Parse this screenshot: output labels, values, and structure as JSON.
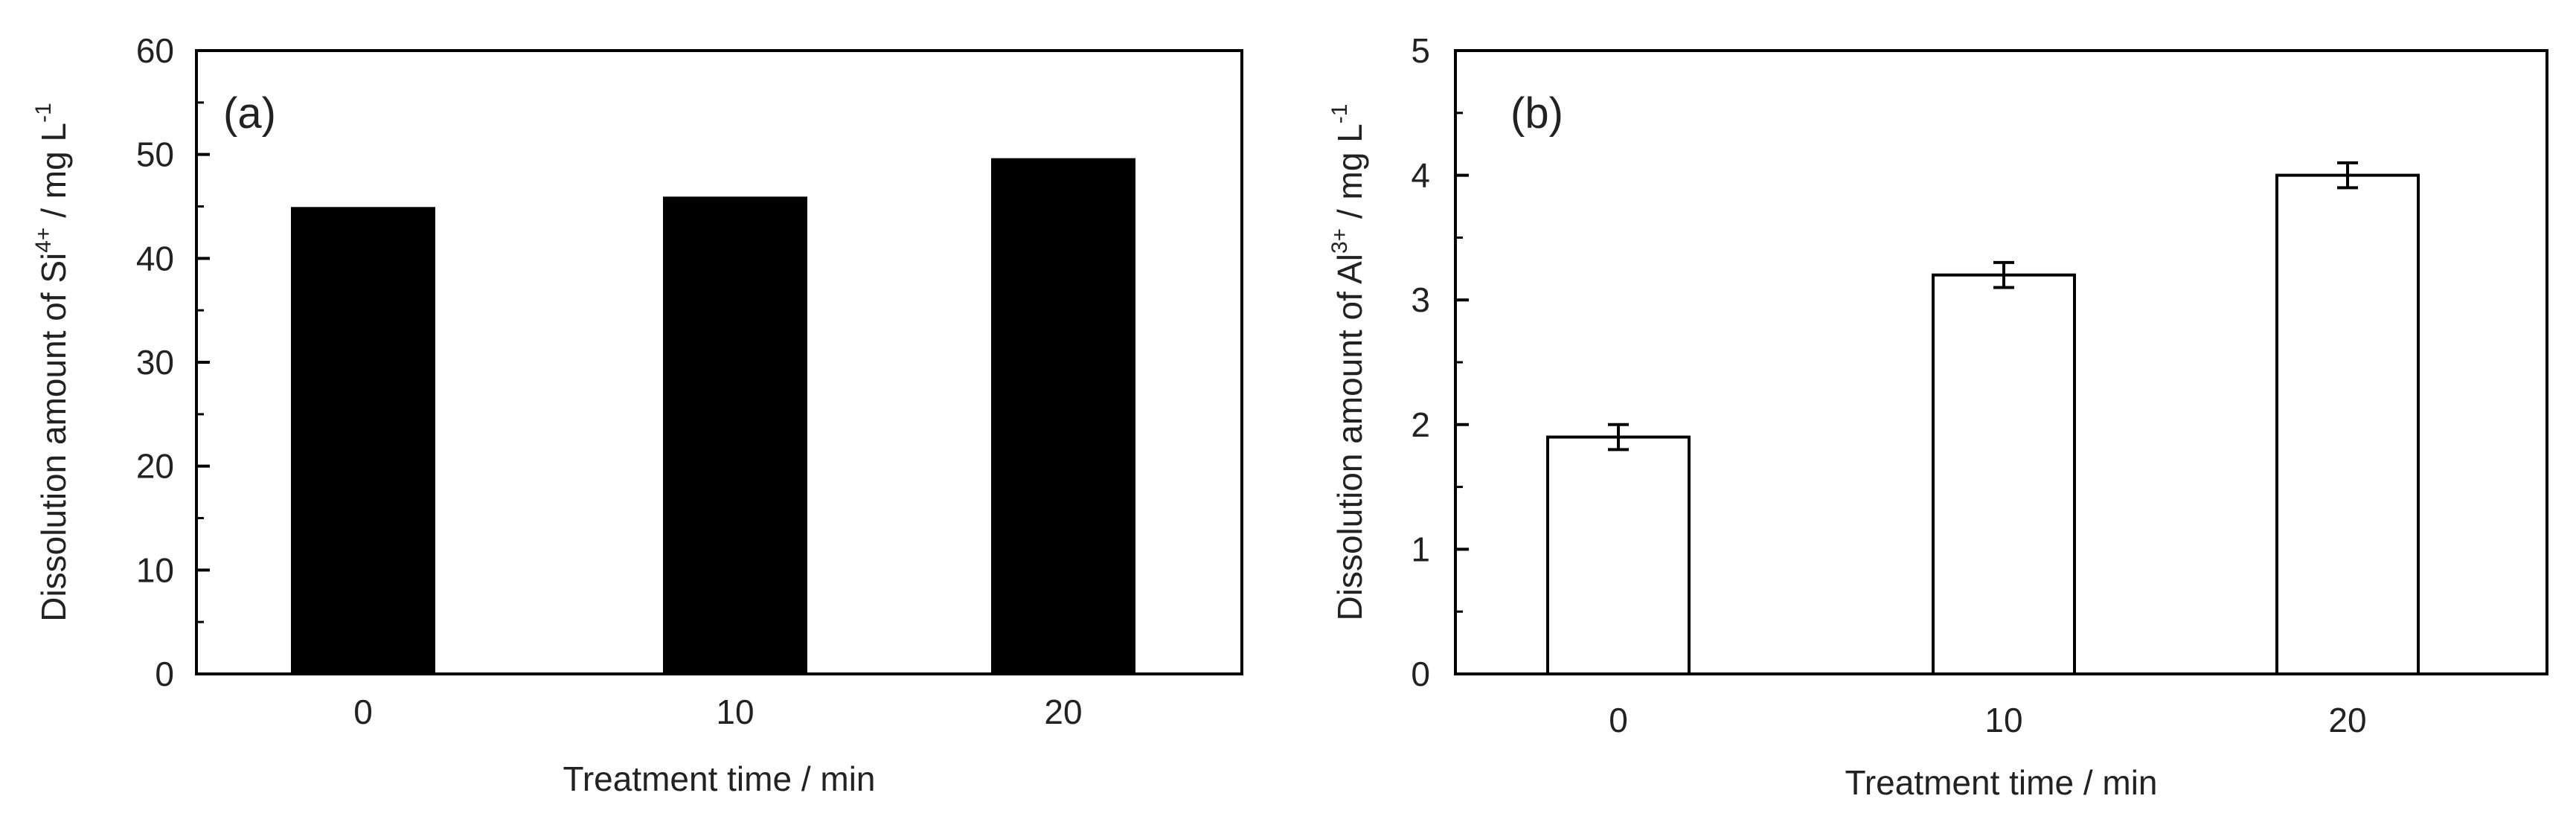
{
  "chart_data": [
    {
      "type": "bar",
      "panel_label": "(a)",
      "categories": [
        "0",
        "10",
        "20"
      ],
      "values": [
        44.8,
        45.8,
        49.5
      ],
      "ylim": [
        0,
        60
      ],
      "y_ticks": [
        "0",
        "10",
        "20",
        "30",
        "40",
        "50",
        "60"
      ],
      "xlabel": "Treatment time / min",
      "ylabel": {
        "text1": "Dissolution amount of Si",
        "sup1": "4+",
        "text2": " / mg L",
        "sup2": "-1"
      },
      "bar_fill": "#000000",
      "bar_stroke": "#000000",
      "grid": false,
      "minor_y_ticks": true
    },
    {
      "type": "bar",
      "panel_label": "(b)",
      "categories": [
        "0",
        "10",
        "20"
      ],
      "values": [
        1.9,
        3.2,
        4.0
      ],
      "errors": [
        0.1,
        0.1,
        0.1
      ],
      "ylim": [
        0,
        5
      ],
      "y_ticks": [
        "0",
        "1",
        "2",
        "3",
        "4",
        "5"
      ],
      "xlabel": "Treatment time / min",
      "ylabel": {
        "text1": "Dissolution amount of Al",
        "sup1": "3+",
        "text2": " / mg L",
        "sup2": "-1"
      },
      "bar_fill": "#ffffff",
      "bar_stroke": "#000000",
      "grid": false,
      "minor_y_ticks": true
    }
  ]
}
